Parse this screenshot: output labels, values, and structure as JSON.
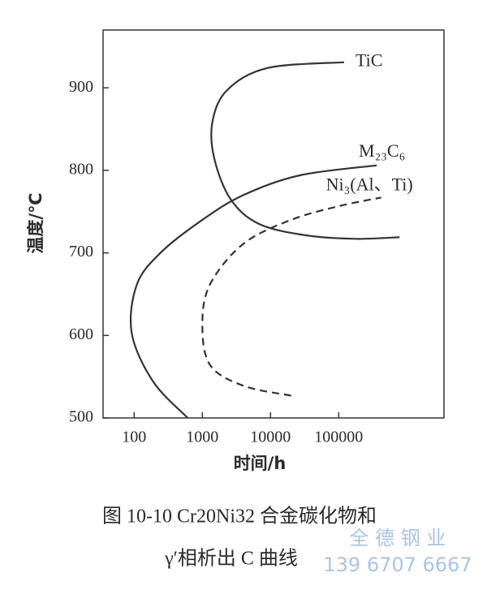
{
  "chart_data": {
    "type": "line",
    "x_label": "时间/h",
    "y_label": "温度/℃",
    "caption": [
      "图 10-10    Cr20Ni32 合金碳化物和",
      "γ′相析出 C 曲线"
    ],
    "xscale": "log",
    "xlim": [
      35,
      3500000
    ],
    "ylim": [
      500,
      970
    ],
    "xticks": [
      100,
      1000,
      10000,
      100000
    ],
    "yticks": [
      500,
      600,
      700,
      800,
      900
    ],
    "series": [
      {
        "name": "TiC",
        "color": "#333333",
        "style": "solid",
        "x": [
          120000,
          9000,
          2300,
          1400,
          1500,
          2600,
          6800,
          35000,
          180000,
          780000
        ],
        "values": [
          931,
          924,
          897,
          858,
          814,
          765,
          735,
          721,
          717,
          719
        ]
      },
      {
        "name": "M₂₃C₆",
        "color": "#333333",
        "style": "solid",
        "x": [
          610,
          190,
          92,
          110,
          250,
          1000,
          4000,
          27000,
          360000
        ],
        "values": [
          500,
          544,
          603,
          662,
          701,
          740,
          770,
          794,
          806
        ]
      },
      {
        "name": "Ni₃(Al、Ti)",
        "color": "#333333",
        "style": "dashed",
        "x": [
          20000,
          4000,
          1300,
          1000,
          1300,
          4000,
          20000,
          105000,
          420000
        ],
        "values": [
          527,
          539,
          564,
          613,
          662,
          711,
          740,
          757,
          767
        ]
      }
    ]
  },
  "watermark": [
    "全 德 钢 业",
    "139 6707 6667"
  ]
}
